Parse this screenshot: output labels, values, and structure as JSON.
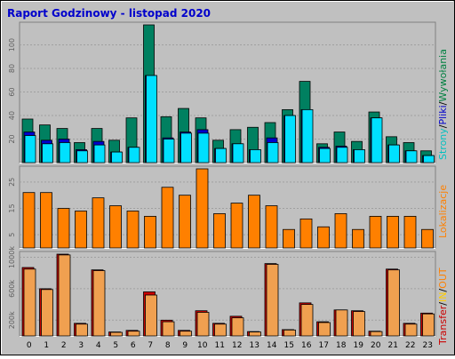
{
  "title": "Raport Godzinowy -  listopad 2020",
  "colors": {
    "frame_bg": "#c0c0c0",
    "title": "#0000cc",
    "wywolania": "#008040",
    "pliki": "#0000cc",
    "strony": "#00ffff",
    "lokalizacje": "#ff8000",
    "transfer": "#cc0000",
    "in": "#ff8000",
    "out": "#ffcc00",
    "transfer_out": "#f0a050"
  },
  "legends": {
    "panel1": [
      {
        "text": "Strony",
        "color": "#00c0c0"
      },
      {
        "text": "/",
        "color": "#000000"
      },
      {
        "text": "Pliki",
        "color": "#0000cc"
      },
      {
        "text": "/",
        "color": "#000000"
      },
      {
        "text": "Wywołania",
        "color": "#008040"
      }
    ],
    "panel2": [
      {
        "text": "Lokalizacje",
        "color": "#ff8000"
      }
    ],
    "panel3": [
      {
        "text": "Transfer",
        "color": "#cc0000"
      },
      {
        "text": "/",
        "color": "#000000"
      },
      {
        "text": "IN",
        "color": "#ffcc00"
      },
      {
        "text": "/",
        "color": "#000000"
      },
      {
        "text": "OUT",
        "color": "#ff8000"
      }
    ]
  },
  "chart_data": [
    {
      "type": "bar",
      "panel": "requests",
      "x": [
        "0",
        "1",
        "2",
        "3",
        "4",
        "5",
        "6",
        "7",
        "8",
        "9",
        "10",
        "11",
        "12",
        "13",
        "14",
        "15",
        "16",
        "17",
        "18",
        "19",
        "20",
        "21",
        "22",
        "23"
      ],
      "yticks": [
        20,
        40,
        60,
        80,
        100
      ],
      "ylim": [
        0,
        117
      ],
      "series": [
        {
          "name": "Wywołania",
          "values": [
            37,
            32,
            29,
            17,
            29,
            19,
            38,
            117,
            39,
            46,
            38,
            19,
            28,
            30,
            34,
            45,
            69,
            16,
            26,
            18,
            43,
            22,
            17,
            10
          ]
        },
        {
          "name": "Pliki",
          "values": [
            26,
            19,
            20,
            11,
            18,
            9,
            13,
            74,
            21,
            26,
            28,
            12,
            16,
            11,
            21,
            40,
            45,
            13,
            14,
            11,
            38,
            15,
            10,
            6
          ]
        },
        {
          "name": "Strony",
          "values": [
            23,
            16,
            17,
            10,
            15,
            9,
            13,
            74,
            20,
            25,
            25,
            12,
            16,
            11,
            17,
            40,
            45,
            12,
            13,
            11,
            38,
            15,
            10,
            6
          ]
        }
      ]
    },
    {
      "type": "bar",
      "panel": "locations",
      "x": [
        "0",
        "1",
        "2",
        "3",
        "4",
        "5",
        "6",
        "7",
        "8",
        "9",
        "10",
        "11",
        "12",
        "13",
        "14",
        "15",
        "16",
        "17",
        "18",
        "19",
        "20",
        "21",
        "22",
        "23"
      ],
      "yticks": [
        5,
        15,
        25
      ],
      "ylim": [
        0,
        30
      ],
      "series": [
        {
          "name": "Lokalizacje",
          "values": [
            21,
            21,
            15,
            14,
            19,
            16,
            14,
            12,
            23,
            20,
            30,
            13,
            17,
            20,
            16,
            7,
            11,
            8,
            13,
            7,
            12,
            12,
            12,
            7
          ]
        }
      ]
    },
    {
      "type": "bar",
      "panel": "transfer",
      "x": [
        "0",
        "1",
        "2",
        "3",
        "4",
        "5",
        "6",
        "7",
        "8",
        "9",
        "10",
        "11",
        "12",
        "13",
        "14",
        "15",
        "16",
        "17",
        "18",
        "19",
        "20",
        "21",
        "22",
        "23"
      ],
      "yticks": [
        200,
        600,
        1000
      ],
      "ytick_labels": [
        "200k",
        "600k",
        "1000k"
      ],
      "ylim": [
        0,
        1040
      ],
      "series": [
        {
          "name": "Transfer",
          "values": [
            870,
            600,
            1040,
            160,
            840,
            50,
            70,
            560,
            200,
            70,
            320,
            160,
            250,
            55,
            920,
            80,
            420,
            180,
            330,
            320,
            60,
            850,
            160,
            290
          ]
        },
        {
          "name": "OUT",
          "values": [
            850,
            590,
            1030,
            150,
            830,
            45,
            60,
            520,
            180,
            60,
            300,
            150,
            230,
            50,
            910,
            75,
            400,
            170,
            330,
            310,
            55,
            840,
            150,
            280
          ]
        }
      ]
    }
  ]
}
